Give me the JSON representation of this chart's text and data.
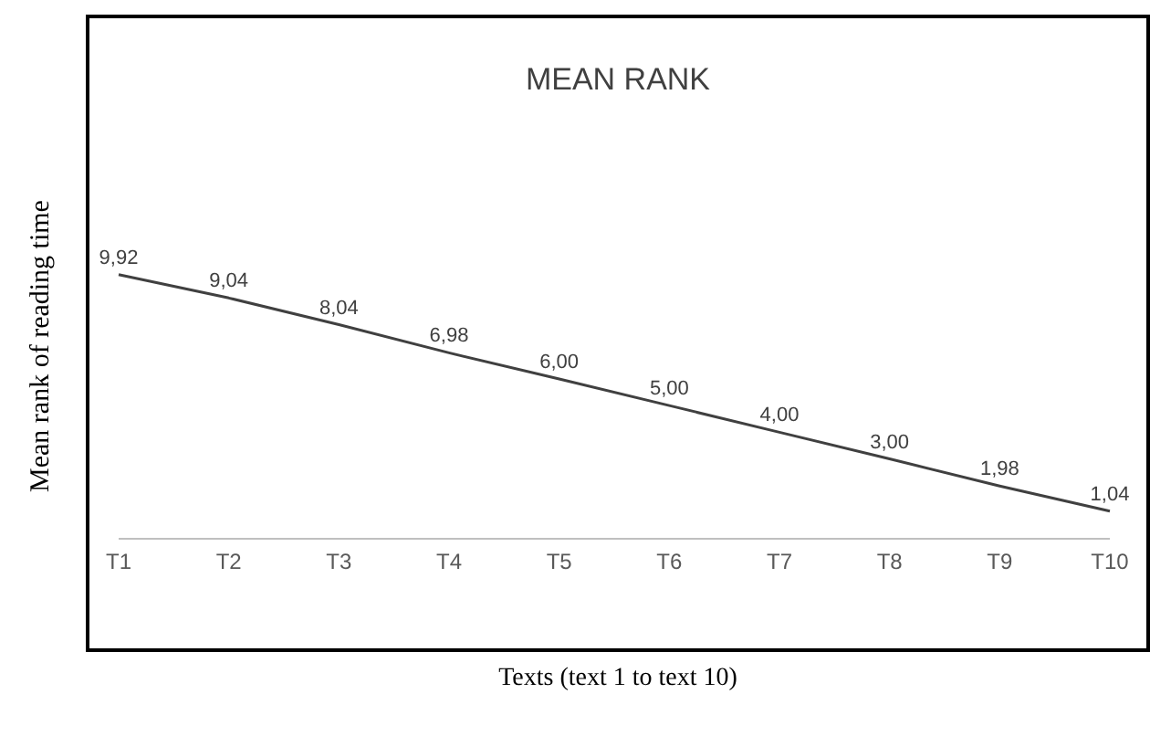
{
  "chart_data": {
    "type": "line",
    "title": "MEAN RANK",
    "xlabel": "Texts (text 1 to text 10)",
    "ylabel": "Mean rank of reading time",
    "categories": [
      "T1",
      "T2",
      "T3",
      "T4",
      "T5",
      "T6",
      "T7",
      "T8",
      "T9",
      "T10"
    ],
    "series": [
      {
        "color": "#404040",
        "values": [
          9.92,
          9.04,
          8.04,
          6.98,
          6.0,
          5.0,
          4.0,
          3.0,
          1.98,
          1.04
        ],
        "value_labels": [
          "9,92",
          "9,04",
          "8,04",
          "6,98",
          "6,00",
          "5,00",
          "4,00",
          "3,00",
          "1,98",
          "1,04"
        ]
      }
    ],
    "tick_labels": "x",
    "marker": "none",
    "line_style": "solid"
  }
}
